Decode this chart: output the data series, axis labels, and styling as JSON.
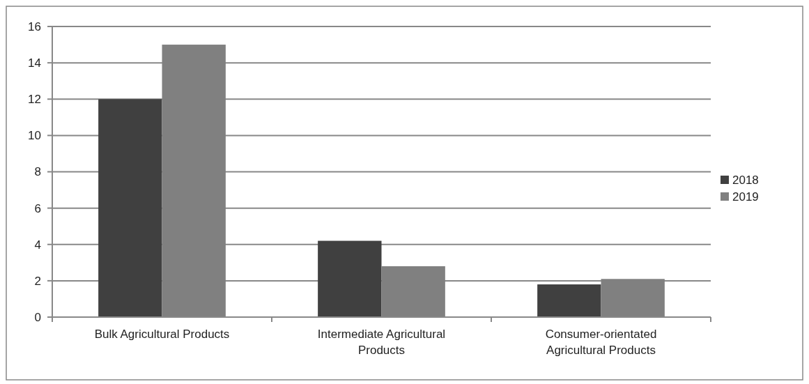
{
  "chart_data": {
    "type": "bar",
    "categories": [
      "Bulk Agricultural Products",
      "Intermediate Agricultural Products",
      "Consumer-orientated Agricultural Products"
    ],
    "series": [
      {
        "name": "2018",
        "color": "#404040",
        "values": [
          12,
          4.2,
          1.8
        ]
      },
      {
        "name": "2019",
        "color": "#808080",
        "values": [
          15,
          2.8,
          2.1
        ]
      }
    ],
    "ylim": [
      0,
      16
    ],
    "yticks": [
      0,
      2,
      4,
      6,
      8,
      10,
      12,
      14,
      16
    ],
    "grid": "y",
    "legend": "right"
  }
}
